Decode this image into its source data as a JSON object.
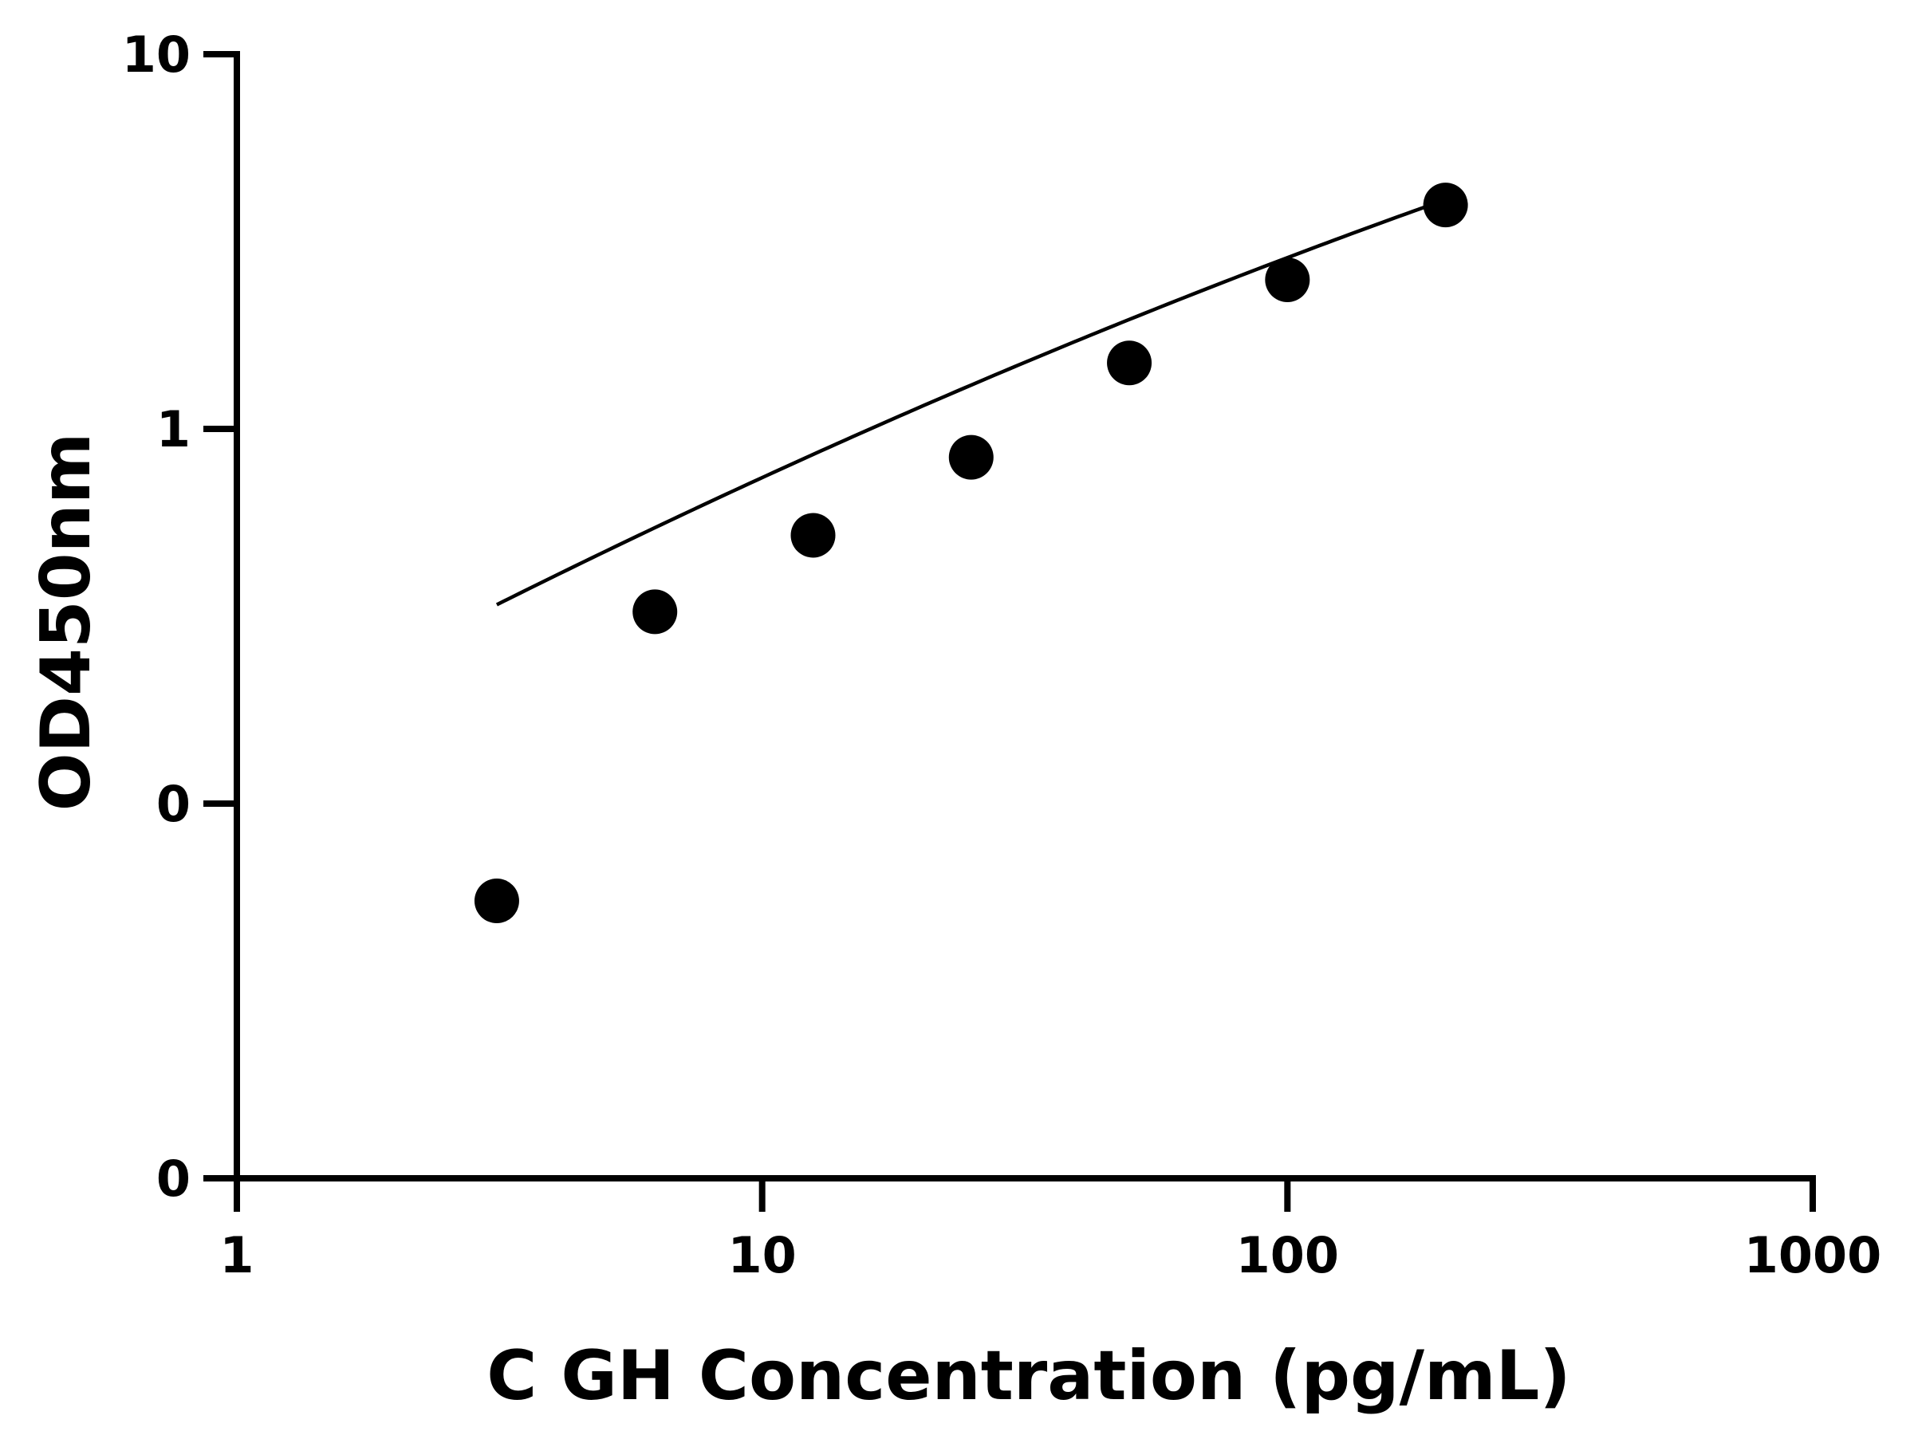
{
  "chart_data": {
    "type": "scatter",
    "title": "",
    "xlabel": "C GH Concentration (pg/mL)",
    "ylabel": "OD450nm",
    "x_scale": "log",
    "y_scale": "log",
    "xlim": [
      1,
      1000
    ],
    "ylim": [
      0.01,
      10
    ],
    "grid": false,
    "x_ticks": [
      {
        "value": 1,
        "label": "1"
      },
      {
        "value": 10,
        "label": "10"
      },
      {
        "value": 100,
        "label": "100"
      },
      {
        "value": 1000,
        "label": "1000"
      }
    ],
    "y_ticks": [
      {
        "value": 0.01,
        "label": "0"
      },
      {
        "value": 0.1,
        "label": "0"
      },
      {
        "value": 1,
        "label": "1"
      },
      {
        "value": 10,
        "label": "10"
      }
    ],
    "points": {
      "x": [
        3.125,
        6.25,
        12.5,
        25,
        50,
        100,
        200
      ],
      "y": [
        0.055,
        0.325,
        0.52,
        0.84,
        1.5,
        2.5,
        3.96
      ]
    },
    "fit_curve": {
      "x_range": [
        3.125,
        200
      ],
      "log_poly": [
        -0.829,
        0.755,
        -0.056
      ]
    },
    "marker_color": "#000000",
    "line_color": "#000000"
  }
}
